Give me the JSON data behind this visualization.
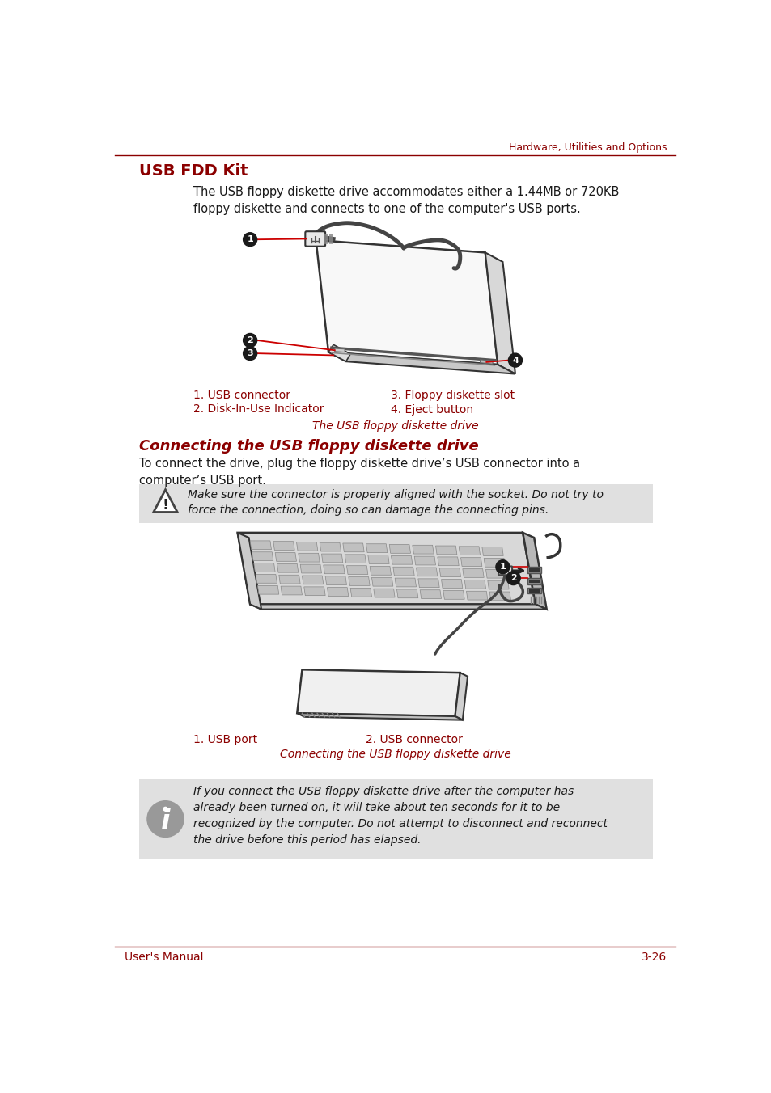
{
  "bg_color": "#ffffff",
  "header_text": "Hardware, Utilities and Options",
  "header_color": "#8B0000",
  "header_line_color": "#8B0000",
  "title_usb_fdd": "USB FDD Kit",
  "title_usb_fdd_color": "#8B0000",
  "body_text_1": "The USB floppy diskette drive accommodates either a 1.44MB or 720KB\nfloppy diskette and connects to one of the computer's USB ports.",
  "label1_left": "1. USB connector",
  "label2_left": "2. Disk-In-Use Indicator",
  "label3_right": "3. Floppy diskette slot",
  "label4_right": "4. Eject button",
  "caption1": "The USB floppy diskette drive",
  "caption1_color": "#8B0000",
  "section2_title": "Connecting the USB floppy diskette drive",
  "section2_title_color": "#8B0000",
  "body_text_2": "To connect the drive, plug the floppy diskette drive’s USB connector into a\ncomputer’s USB port.",
  "warning_text": "Make sure the connector is properly aligned with the socket. Do not try to\nforce the connection, doing so can damage the connecting pins.",
  "label_s2_1left": "1. USB port",
  "label_s2_2right": "2. USB connector",
  "caption2": "Connecting the USB floppy diskette drive",
  "caption2_color": "#8B0000",
  "info_text": "If you connect the USB floppy diskette drive after the computer has\nalready been turned on, it will take about ten seconds for it to be\nrecognized by the computer. Do not attempt to disconnect and reconnect\nthe drive before this period has elapsed.",
  "footer_left": "User's Manual",
  "footer_right": "3-26",
  "footer_color": "#8B0000",
  "label_color": "#8B0000",
  "red_line_color": "#CC0000",
  "circle_color": "#1a1a1a",
  "circle_text_color": "#ffffff",
  "warning_bg": "#e0e0e0",
  "info_bg": "#e0e0e0",
  "body_text_color": "#1a1a1a",
  "diagram_edge_color": "#333333",
  "diagram_fill": "#ffffff"
}
